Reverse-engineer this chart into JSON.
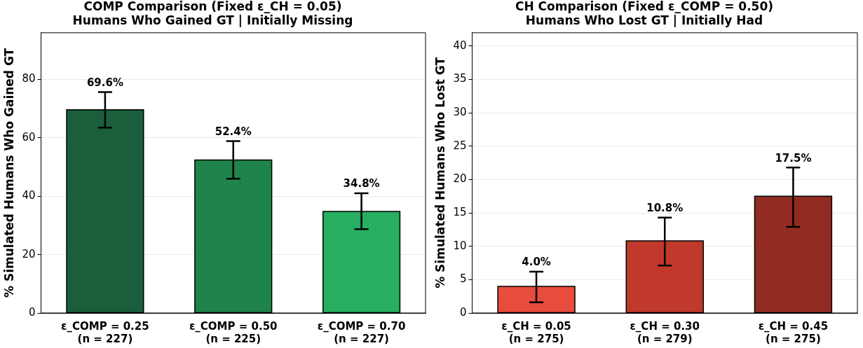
{
  "chart_data": [
    {
      "type": "bar",
      "title": "COMP Comparison (Fixed ε_CH = 0.05)",
      "subtitle": "Humans Who Gained GT | Initially Missing",
      "ylabel": "% Simulated Humans Who Gained GT",
      "categories": [
        "ε_COMP = 0.25\n(n = 227)",
        "ε_COMP = 0.50\n(n = 225)",
        "ε_COMP = 0.70\n(n = 227)"
      ],
      "values": [
        69.6,
        52.4,
        34.8
      ],
      "colors": [
        "#1a5e3c",
        "#1e8449",
        "#27ae60"
      ],
      "errors": [
        [
          63.5,
          75.7
        ],
        [
          46.0,
          58.9
        ],
        [
          28.7,
          41.0
        ]
      ],
      "value_labels": [
        "69.6%",
        "52.4%",
        "34.8%"
      ],
      "ylim": [
        0,
        96
      ],
      "yticks": [
        0,
        20,
        40,
        60,
        80
      ],
      "grid": "y",
      "legend": false
    },
    {
      "type": "bar",
      "title": "CH Comparison (Fixed ε_COMP = 0.50)",
      "subtitle": "Humans Who Lost GT | Initially Had",
      "ylabel": "% Simulated Humans Who Lost GT",
      "categories": [
        "ε_CH = 0.05\n(n = 275)",
        "ε_CH = 0.30\n(n = 279)",
        "ε_CH = 0.45\n(n = 275)"
      ],
      "values": [
        4.0,
        10.8,
        17.5
      ],
      "colors": [
        "#e74c3c",
        "#c0392b",
        "#922b21"
      ],
      "errors": [
        [
          1.6,
          6.2
        ],
        [
          7.1,
          14.3
        ],
        [
          12.9,
          21.8
        ]
      ],
      "value_labels": [
        "4.0%",
        "10.8%",
        "17.5%"
      ],
      "ylim": [
        0,
        42
      ],
      "yticks": [
        0,
        5,
        10,
        15,
        20,
        25,
        30,
        35,
        40
      ],
      "grid": "y",
      "legend": false
    }
  ]
}
